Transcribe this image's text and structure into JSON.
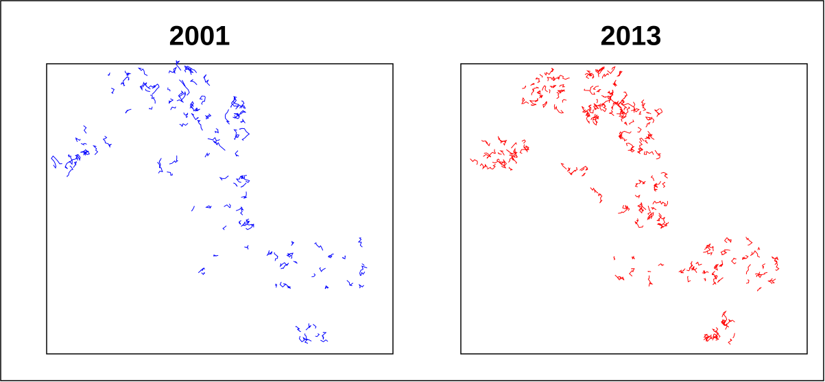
{
  "panels": [
    {
      "title": "2001",
      "color": "#0000ff"
    },
    {
      "title": "2013",
      "color": "#ff0000"
    }
  ]
}
